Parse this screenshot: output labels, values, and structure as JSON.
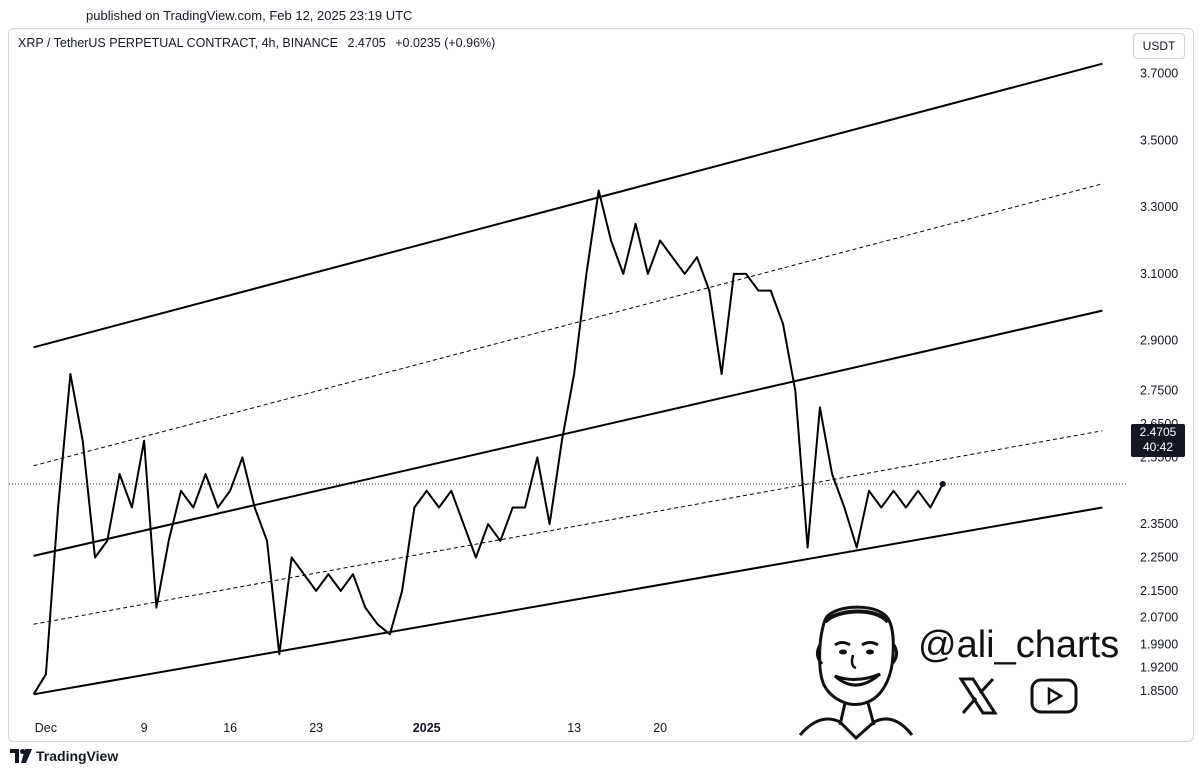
{
  "published": "published on TradingView.com, Feb 12, 2025 23:19 UTC",
  "legend": {
    "symbol": "XRP / TetherUS PERPETUAL CONTRACT, 4h, BINANCE",
    "price": "2.4705",
    "change": "+0.0235 (+0.96%)"
  },
  "currency_button": "USDT",
  "price_tag": {
    "price": "2.4705",
    "countdown": "40:42"
  },
  "footer": {
    "brand": "TradingView"
  },
  "watermark": {
    "handle": "@ali_charts",
    "icons": [
      "x-logo-icon",
      "youtube-icon"
    ]
  },
  "colors": {
    "line": "#000000",
    "grid": "#ffffff",
    "tag_bg": "#131722"
  },
  "chart_data": {
    "type": "line",
    "title": "",
    "xlabel": "",
    "ylabel": "",
    "ylim": [
      1.82,
      3.75
    ],
    "y_ticks": [
      "3.7000",
      "3.5000",
      "3.3000",
      "3.1000",
      "2.9000",
      "2.7500",
      "2.6500",
      "2.5500",
      "2.4705",
      "2.3500",
      "2.2500",
      "2.1500",
      "2.0700",
      "1.9900",
      "1.9200",
      "1.8500"
    ],
    "y_tick_values": [
      3.7,
      3.5,
      3.3,
      3.1,
      2.9,
      2.75,
      2.65,
      2.55,
      2.4705,
      2.35,
      2.25,
      2.15,
      2.07,
      1.99,
      1.92,
      1.85
    ],
    "x_ticks": [
      "Dec",
      "9",
      "16",
      "23",
      "2025",
      "13",
      "20"
    ],
    "x_tick_dates": [
      "2024-12-01",
      "2024-12-09",
      "2024-12-16",
      "2024-12-23",
      "2025-01-01",
      "2025-01-13",
      "2025-01-20"
    ],
    "last_price": 2.4705,
    "series": [
      {
        "name": "",
        "x": [
          "2024-11-30",
          "2024-12-01",
          "2024-12-02",
          "2024-12-03",
          "2024-12-04",
          "2024-12-05",
          "2024-12-06",
          "2024-12-07",
          "2024-12-08",
          "2024-12-09",
          "2024-12-10",
          "2024-12-11",
          "2024-12-12",
          "2024-12-13",
          "2024-12-14",
          "2024-12-15",
          "2024-12-16",
          "2024-12-17",
          "2024-12-18",
          "2024-12-19",
          "2024-12-20",
          "2024-12-21",
          "2024-12-22",
          "2024-12-23",
          "2024-12-24",
          "2024-12-25",
          "2024-12-26",
          "2024-12-27",
          "2024-12-28",
          "2024-12-29",
          "2024-12-30",
          "2024-12-31",
          "2025-01-01",
          "2025-01-02",
          "2025-01-03",
          "2025-01-04",
          "2025-01-05",
          "2025-01-06",
          "2025-01-07",
          "2025-01-08",
          "2025-01-09",
          "2025-01-10",
          "2025-01-11",
          "2025-01-12",
          "2025-01-13",
          "2025-01-14",
          "2025-01-15",
          "2025-01-16",
          "2025-01-17",
          "2025-01-18",
          "2025-01-19",
          "2025-01-20",
          "2025-01-21",
          "2025-01-22",
          "2025-01-23",
          "2025-01-24",
          "2025-01-25",
          "2025-01-26",
          "2025-01-27",
          "2025-01-28",
          "2025-01-29",
          "2025-01-30",
          "2025-01-31",
          "2025-02-01",
          "2025-02-02",
          "2025-02-03",
          "2025-02-04",
          "2025-02-05",
          "2025-02-06",
          "2025-02-07",
          "2025-02-08",
          "2025-02-09",
          "2025-02-10",
          "2025-02-11",
          "2025-02-12"
        ],
        "values": [
          1.84,
          1.9,
          2.4,
          2.8,
          2.6,
          2.25,
          2.3,
          2.5,
          2.4,
          2.6,
          2.1,
          2.3,
          2.45,
          2.4,
          2.5,
          2.4,
          2.45,
          2.55,
          2.4,
          2.3,
          1.96,
          2.25,
          2.2,
          2.15,
          2.2,
          2.15,
          2.2,
          2.1,
          2.05,
          2.02,
          2.15,
          2.4,
          2.45,
          2.4,
          2.45,
          2.35,
          2.25,
          2.35,
          2.3,
          2.4,
          2.4,
          2.55,
          2.35,
          2.6,
          2.8,
          3.1,
          3.35,
          3.2,
          3.1,
          3.25,
          3.1,
          3.2,
          3.15,
          3.1,
          3.15,
          3.05,
          2.8,
          3.1,
          3.1,
          3.05,
          3.05,
          2.95,
          2.75,
          2.28,
          2.7,
          2.5,
          2.4,
          2.28,
          2.45,
          2.4,
          2.45,
          2.4,
          2.45,
          2.4,
          2.47
        ]
      }
    ],
    "channel_lines": [
      {
        "style": "solid",
        "start": [
          "2024-11-30",
          2.88
        ],
        "end": [
          "2025-02-25",
          3.73
        ]
      },
      {
        "style": "dashed",
        "start": [
          "2024-11-30",
          2.525
        ],
        "end": [
          "2025-02-25",
          3.37
        ]
      },
      {
        "style": "solid",
        "start": [
          "2024-11-30",
          2.255
        ],
        "end": [
          "2025-02-25",
          2.99
        ]
      },
      {
        "style": "dashed",
        "start": [
          "2024-11-30",
          2.05
        ],
        "end": [
          "2025-02-25",
          2.63
        ]
      },
      {
        "style": "solid",
        "start": [
          "2024-11-30",
          1.84
        ],
        "end": [
          "2025-02-25",
          2.4
        ]
      }
    ],
    "grid": false,
    "legend_position": "top-left"
  }
}
